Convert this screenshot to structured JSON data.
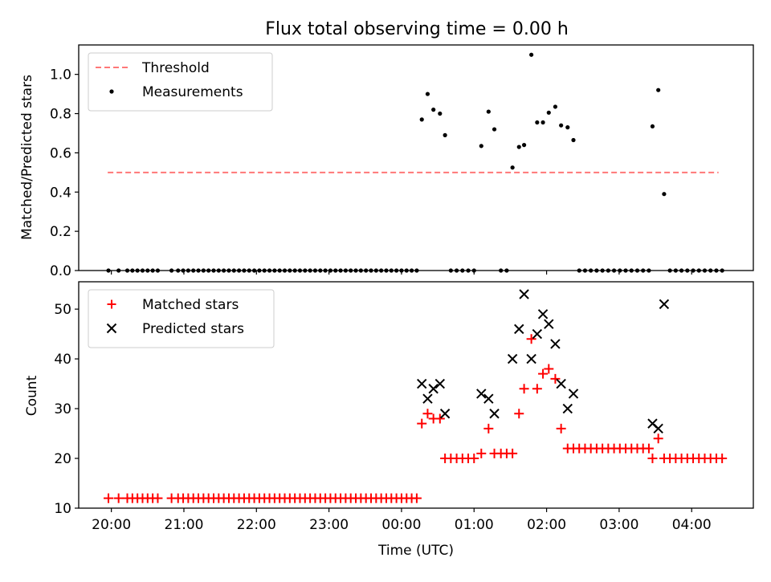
{
  "chart_data": [
    {
      "type": "scatter",
      "title": "Flux total observing time = 0.00 h",
      "xlabel": "",
      "ylabel": "Matched/Predicted stars",
      "xlim": [
        -0.45,
        8.85
      ],
      "ylim": [
        0.0,
        1.15
      ],
      "yticks": [
        "0.0",
        "0.2",
        "0.4",
        "0.6",
        "0.8",
        "1.0"
      ],
      "ytick_values": [
        0.0,
        0.2,
        0.4,
        0.6,
        0.8,
        1.0
      ],
      "grid": false,
      "legend_position": "top-left",
      "threshold": {
        "name": "Threshold",
        "y": 0.5,
        "x": [
          -0.05,
          8.37
        ],
        "color": "#ff7777",
        "style": "dashed"
      },
      "series": [
        {
          "name": "Measurements",
          "color": "#000000",
          "marker": "dot",
          "points": [
            [
              -0.04,
              0
            ],
            [
              0.1,
              0
            ],
            [
              0.22,
              0
            ],
            [
              0.29,
              0
            ],
            [
              0.36,
              0
            ],
            [
              0.43,
              0
            ],
            [
              0.5,
              0
            ],
            [
              0.57,
              0
            ],
            [
              0.64,
              0
            ],
            [
              0.83,
              0
            ],
            [
              0.92,
              0
            ],
            [
              0.99,
              0
            ],
            [
              1.06,
              0
            ],
            [
              1.13,
              0
            ],
            [
              1.2,
              0
            ],
            [
              1.27,
              0
            ],
            [
              1.34,
              0
            ],
            [
              1.41,
              0
            ],
            [
              1.48,
              0
            ],
            [
              1.55,
              0
            ],
            [
              1.62,
              0
            ],
            [
              1.69,
              0
            ],
            [
              1.76,
              0
            ],
            [
              1.83,
              0
            ],
            [
              1.9,
              0
            ],
            [
              1.97,
              0
            ],
            [
              2.04,
              0
            ],
            [
              2.11,
              0
            ],
            [
              2.18,
              0
            ],
            [
              2.25,
              0
            ],
            [
              2.32,
              0
            ],
            [
              2.39,
              0
            ],
            [
              2.46,
              0
            ],
            [
              2.53,
              0
            ],
            [
              2.6,
              0
            ],
            [
              2.67,
              0
            ],
            [
              2.74,
              0
            ],
            [
              2.81,
              0
            ],
            [
              2.88,
              0
            ],
            [
              2.95,
              0
            ],
            [
              3.02,
              0
            ],
            [
              3.09,
              0
            ],
            [
              3.16,
              0
            ],
            [
              3.23,
              0
            ],
            [
              3.3,
              0
            ],
            [
              3.37,
              0
            ],
            [
              3.44,
              0
            ],
            [
              3.51,
              0
            ],
            [
              3.58,
              0
            ],
            [
              3.65,
              0
            ],
            [
              3.72,
              0
            ],
            [
              3.79,
              0
            ],
            [
              3.86,
              0
            ],
            [
              3.93,
              0
            ],
            [
              4.0,
              0
            ],
            [
              4.07,
              0
            ],
            [
              4.14,
              0
            ],
            [
              4.21,
              0
            ],
            [
              4.28,
              0.77
            ],
            [
              4.36,
              0.9
            ],
            [
              4.44,
              0.82
            ],
            [
              4.53,
              0.8
            ],
            [
              4.6,
              0.69
            ],
            [
              4.68,
              0
            ],
            [
              4.76,
              0
            ],
            [
              4.84,
              0
            ],
            [
              4.92,
              0
            ],
            [
              5.0,
              0
            ],
            [
              5.1,
              0.635
            ],
            [
              5.2,
              0.81
            ],
            [
              5.28,
              0.72
            ],
            [
              5.37,
              0
            ],
            [
              5.45,
              0
            ],
            [
              5.53,
              0.525
            ],
            [
              5.62,
              0.63
            ],
            [
              5.69,
              0.64
            ],
            [
              5.79,
              1.1
            ],
            [
              5.87,
              0.755
            ],
            [
              5.95,
              0.755
            ],
            [
              6.03,
              0.805
            ],
            [
              6.12,
              0.835
            ],
            [
              6.2,
              0.74
            ],
            [
              6.29,
              0.73
            ],
            [
              6.37,
              0.665
            ],
            [
              6.45,
              0
            ],
            [
              6.53,
              0
            ],
            [
              6.61,
              0
            ],
            [
              6.69,
              0
            ],
            [
              6.77,
              0
            ],
            [
              6.85,
              0
            ],
            [
              6.93,
              0
            ],
            [
              7.01,
              0
            ],
            [
              7.09,
              0
            ],
            [
              7.17,
              0
            ],
            [
              7.25,
              0
            ],
            [
              7.33,
              0
            ],
            [
              7.41,
              0
            ],
            [
              7.46,
              0.735
            ],
            [
              7.54,
              0.92
            ],
            [
              7.62,
              0.39
            ],
            [
              7.7,
              0
            ],
            [
              7.78,
              0
            ],
            [
              7.86,
              0
            ],
            [
              7.94,
              0
            ],
            [
              8.02,
              0
            ],
            [
              8.1,
              0
            ],
            [
              8.18,
              0
            ],
            [
              8.26,
              0
            ],
            [
              8.34,
              0
            ],
            [
              8.42,
              0
            ]
          ]
        }
      ]
    },
    {
      "type": "scatter",
      "title": "",
      "xlabel": "Time (UTC)",
      "ylabel": "Count",
      "xlim": [
        -0.45,
        8.85
      ],
      "ylim": [
        10,
        55.5
      ],
      "xticks": [
        "20:00",
        "21:00",
        "22:00",
        "23:00",
        "00:00",
        "01:00",
        "02:00",
        "03:00",
        "04:00"
      ],
      "xtick_values": [
        0,
        1,
        2,
        3,
        4,
        5,
        6,
        7,
        8
      ],
      "yticks": [
        "10",
        "20",
        "30",
        "40",
        "50"
      ],
      "ytick_values": [
        10,
        20,
        30,
        40,
        50
      ],
      "grid": false,
      "legend_position": "top-left",
      "series": [
        {
          "name": "Matched stars",
          "color": "#ff0000",
          "marker": "plus",
          "points": [
            [
              -0.04,
              12
            ],
            [
              0.1,
              12
            ],
            [
              0.22,
              12
            ],
            [
              0.29,
              12
            ],
            [
              0.36,
              12
            ],
            [
              0.43,
              12
            ],
            [
              0.5,
              12
            ],
            [
              0.57,
              12
            ],
            [
              0.64,
              12
            ],
            [
              0.83,
              12
            ],
            [
              0.92,
              12
            ],
            [
              0.99,
              12
            ],
            [
              1.06,
              12
            ],
            [
              1.13,
              12
            ],
            [
              1.2,
              12
            ],
            [
              1.27,
              12
            ],
            [
              1.34,
              12
            ],
            [
              1.41,
              12
            ],
            [
              1.48,
              12
            ],
            [
              1.55,
              12
            ],
            [
              1.62,
              12
            ],
            [
              1.69,
              12
            ],
            [
              1.76,
              12
            ],
            [
              1.83,
              12
            ],
            [
              1.9,
              12
            ],
            [
              1.97,
              12
            ],
            [
              2.04,
              12
            ],
            [
              2.11,
              12
            ],
            [
              2.18,
              12
            ],
            [
              2.25,
              12
            ],
            [
              2.32,
              12
            ],
            [
              2.39,
              12
            ],
            [
              2.46,
              12
            ],
            [
              2.53,
              12
            ],
            [
              2.6,
              12
            ],
            [
              2.67,
              12
            ],
            [
              2.74,
              12
            ],
            [
              2.81,
              12
            ],
            [
              2.88,
              12
            ],
            [
              2.95,
              12
            ],
            [
              3.02,
              12
            ],
            [
              3.09,
              12
            ],
            [
              3.16,
              12
            ],
            [
              3.23,
              12
            ],
            [
              3.3,
              12
            ],
            [
              3.37,
              12
            ],
            [
              3.44,
              12
            ],
            [
              3.51,
              12
            ],
            [
              3.58,
              12
            ],
            [
              3.65,
              12
            ],
            [
              3.72,
              12
            ],
            [
              3.79,
              12
            ],
            [
              3.86,
              12
            ],
            [
              3.93,
              12
            ],
            [
              4.0,
              12
            ],
            [
              4.07,
              12
            ],
            [
              4.14,
              12
            ],
            [
              4.21,
              12
            ],
            [
              4.28,
              27
            ],
            [
              4.36,
              29
            ],
            [
              4.44,
              28
            ],
            [
              4.53,
              28
            ],
            [
              4.6,
              20
            ],
            [
              4.68,
              20
            ],
            [
              4.76,
              20
            ],
            [
              4.84,
              20
            ],
            [
              4.92,
              20
            ],
            [
              5.0,
              20
            ],
            [
              5.1,
              21
            ],
            [
              5.2,
              26
            ],
            [
              5.28,
              21
            ],
            [
              5.37,
              21
            ],
            [
              5.45,
              21
            ],
            [
              5.53,
              21
            ],
            [
              5.62,
              29
            ],
            [
              5.69,
              34
            ],
            [
              5.79,
              44
            ],
            [
              5.87,
              34
            ],
            [
              5.95,
              37
            ],
            [
              6.03,
              38
            ],
            [
              6.12,
              36
            ],
            [
              6.2,
              26
            ],
            [
              6.29,
              22
            ],
            [
              6.37,
              22
            ],
            [
              6.45,
              22
            ],
            [
              6.53,
              22
            ],
            [
              6.61,
              22
            ],
            [
              6.69,
              22
            ],
            [
              6.77,
              22
            ],
            [
              6.85,
              22
            ],
            [
              6.93,
              22
            ],
            [
              7.01,
              22
            ],
            [
              7.09,
              22
            ],
            [
              7.17,
              22
            ],
            [
              7.25,
              22
            ],
            [
              7.33,
              22
            ],
            [
              7.41,
              22
            ],
            [
              7.46,
              20
            ],
            [
              7.54,
              24
            ],
            [
              7.62,
              20
            ],
            [
              7.7,
              20
            ],
            [
              7.78,
              20
            ],
            [
              7.86,
              20
            ],
            [
              7.94,
              20
            ],
            [
              8.02,
              20
            ],
            [
              8.1,
              20
            ],
            [
              8.18,
              20
            ],
            [
              8.26,
              20
            ],
            [
              8.34,
              20
            ],
            [
              8.42,
              20
            ]
          ]
        },
        {
          "name": "Predicted stars",
          "color": "#000000",
          "marker": "x",
          "points": [
            [
              4.28,
              35
            ],
            [
              4.36,
              32
            ],
            [
              4.44,
              34
            ],
            [
              4.53,
              35
            ],
            [
              4.6,
              29
            ],
            [
              5.1,
              33
            ],
            [
              5.2,
              32
            ],
            [
              5.28,
              29
            ],
            [
              5.53,
              40
            ],
            [
              5.62,
              46
            ],
            [
              5.69,
              53
            ],
            [
              5.79,
              40
            ],
            [
              5.87,
              45
            ],
            [
              5.95,
              49
            ],
            [
              6.03,
              47
            ],
            [
              6.12,
              43
            ],
            [
              6.2,
              35
            ],
            [
              6.29,
              30
            ],
            [
              6.37,
              33
            ],
            [
              7.46,
              27
            ],
            [
              7.54,
              26
            ],
            [
              7.62,
              51
            ]
          ]
        }
      ]
    }
  ]
}
